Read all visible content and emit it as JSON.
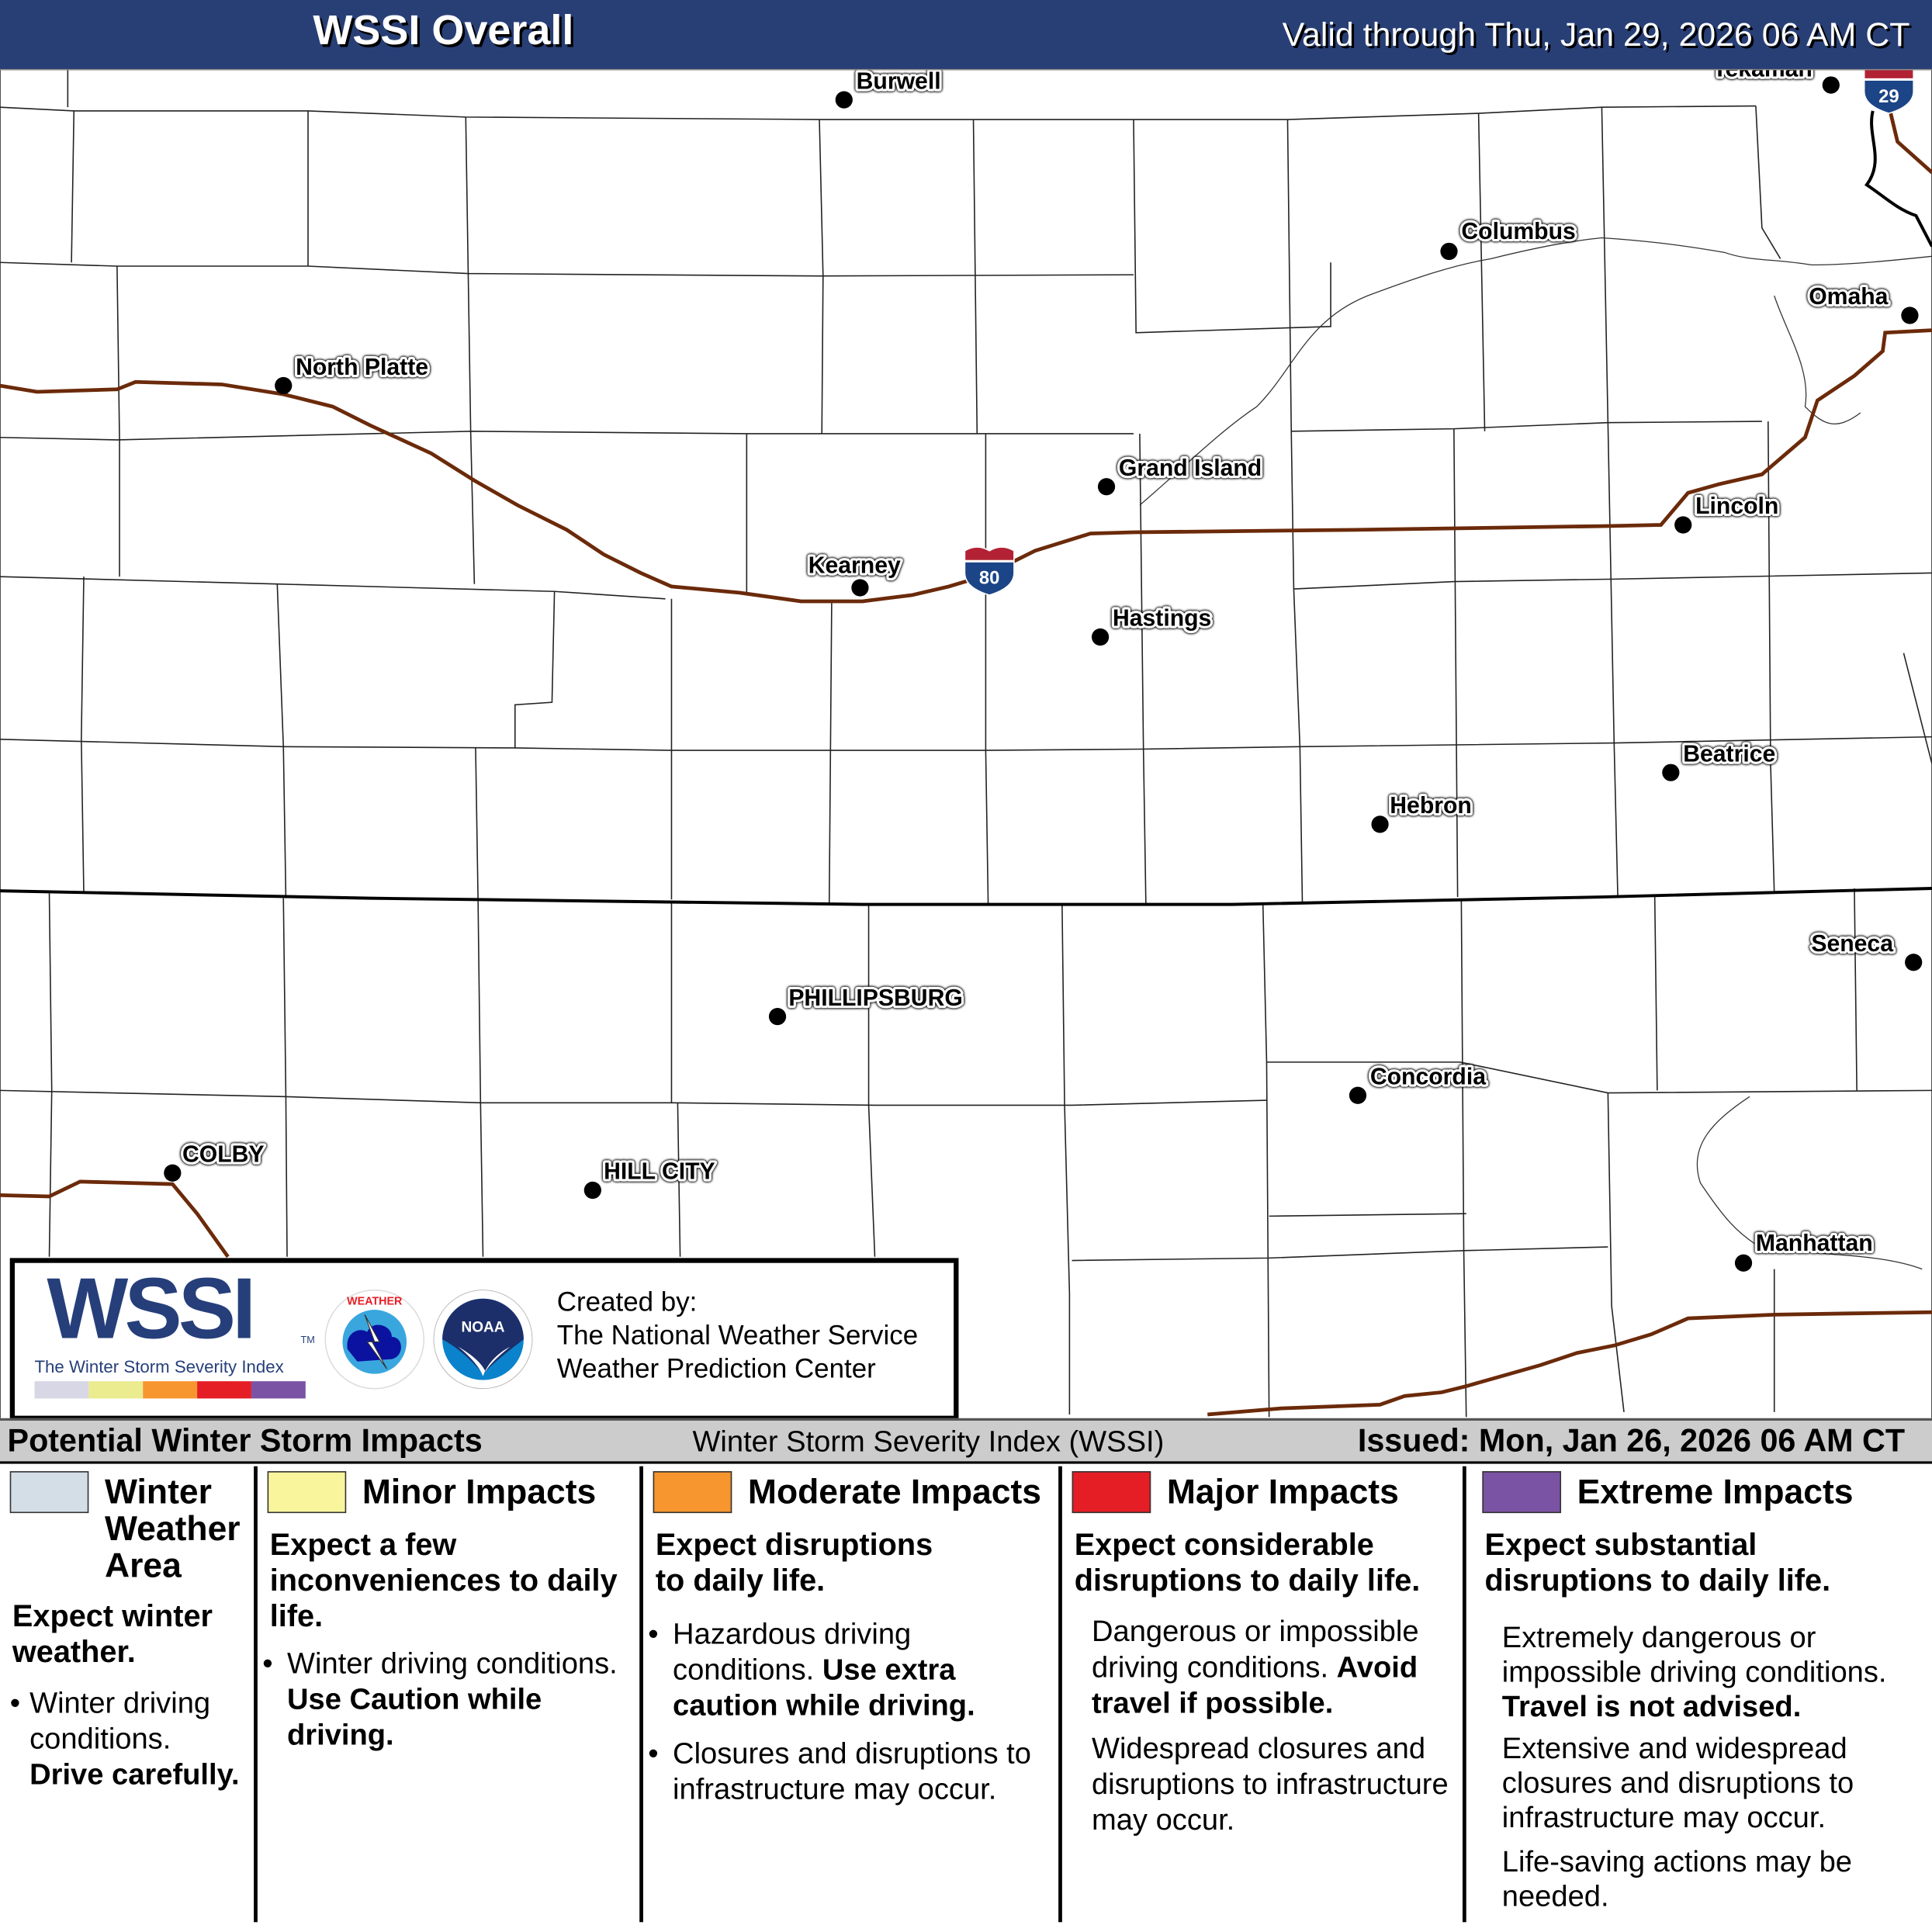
{
  "header": {
    "title": "WSSI Overall",
    "valid": "Valid through Thu, Jan 29, 2026 06 AM CT"
  },
  "map": {
    "cities": [
      {
        "name": "Burwell"
      },
      {
        "name": "Tekamah"
      },
      {
        "name": "Columbus"
      },
      {
        "name": "Omaha"
      },
      {
        "name": "North Platte"
      },
      {
        "name": "Grand Island"
      },
      {
        "name": "Lincoln"
      },
      {
        "name": "Kearney"
      },
      {
        "name": "Hastings"
      },
      {
        "name": "Beatrice"
      },
      {
        "name": "Hebron"
      },
      {
        "name": "Seneca"
      },
      {
        "name": "PHILLIPSBURG"
      },
      {
        "name": "Concordia"
      },
      {
        "name": "COLBY"
      },
      {
        "name": "HILL CITY"
      },
      {
        "name": "Manhattan"
      }
    ],
    "shields": [
      {
        "number": "80"
      },
      {
        "number": "29"
      }
    ],
    "colors": {
      "highway": "#6b2a0a",
      "shield_blue": "#1c4587",
      "shield_red": "#b22234"
    }
  },
  "logo": {
    "wordmark": "WSSI",
    "tagline": "The Winter Storm Severity Index",
    "trademark": "TM",
    "created_by": "Created by:",
    "org1": "The National Weather Service",
    "org2": "Weather Prediction Center",
    "nws_logo_text": "NATIONAL WEATHER SERVICE",
    "noaa_logo_text": "NOAA"
  },
  "legend": {
    "heading": "Potential Winter Storm Impacts",
    "index_name": "Winter Storm Severity Index (WSSI)",
    "issued": "Issued: Mon, Jan 26, 2026 06 AM CT",
    "categories": [
      {
        "color": "#d3dee6",
        "title": "Winter Weather Area",
        "summary": "Expect winter weather.",
        "bullets": [
          "Winter driving conditions.",
          "Drive carefully."
        ]
      },
      {
        "color": "#f8f59c",
        "title": "Minor Impacts",
        "summary": "Expect a few inconveniences to daily life.",
        "bullets": [
          "Winter driving conditions.",
          "Use Caution while driving."
        ]
      },
      {
        "color": "#f7962f",
        "title": "Moderate Impacts",
        "summary": "Expect disruptions to daily life.",
        "bullets": [
          "Hazardous driving conditions.",
          "Use extra caution while driving.",
          "Closures and disruptions to infrastructure may occur."
        ]
      },
      {
        "color": "#e51e25",
        "title": "Major Impacts",
        "summary": "Expect considerable disruptions to daily life.",
        "bullets": [
          "Dangerous or impossible driving conditions.",
          "Avoid travel if possible.",
          "Widespread closures and disruptions to infrastructure may occur."
        ]
      },
      {
        "color": "#7b53a4",
        "title": "Extreme Impacts",
        "summary": "Expect substantial disruptions to daily life.",
        "bullets": [
          "Extremely dangerous or impossible driving conditions.",
          "Travel is not advised.",
          "Extensive and widespread closures and disruptions to infrastructure may occur.",
          "Life-saving actions may be needed."
        ]
      }
    ]
  }
}
